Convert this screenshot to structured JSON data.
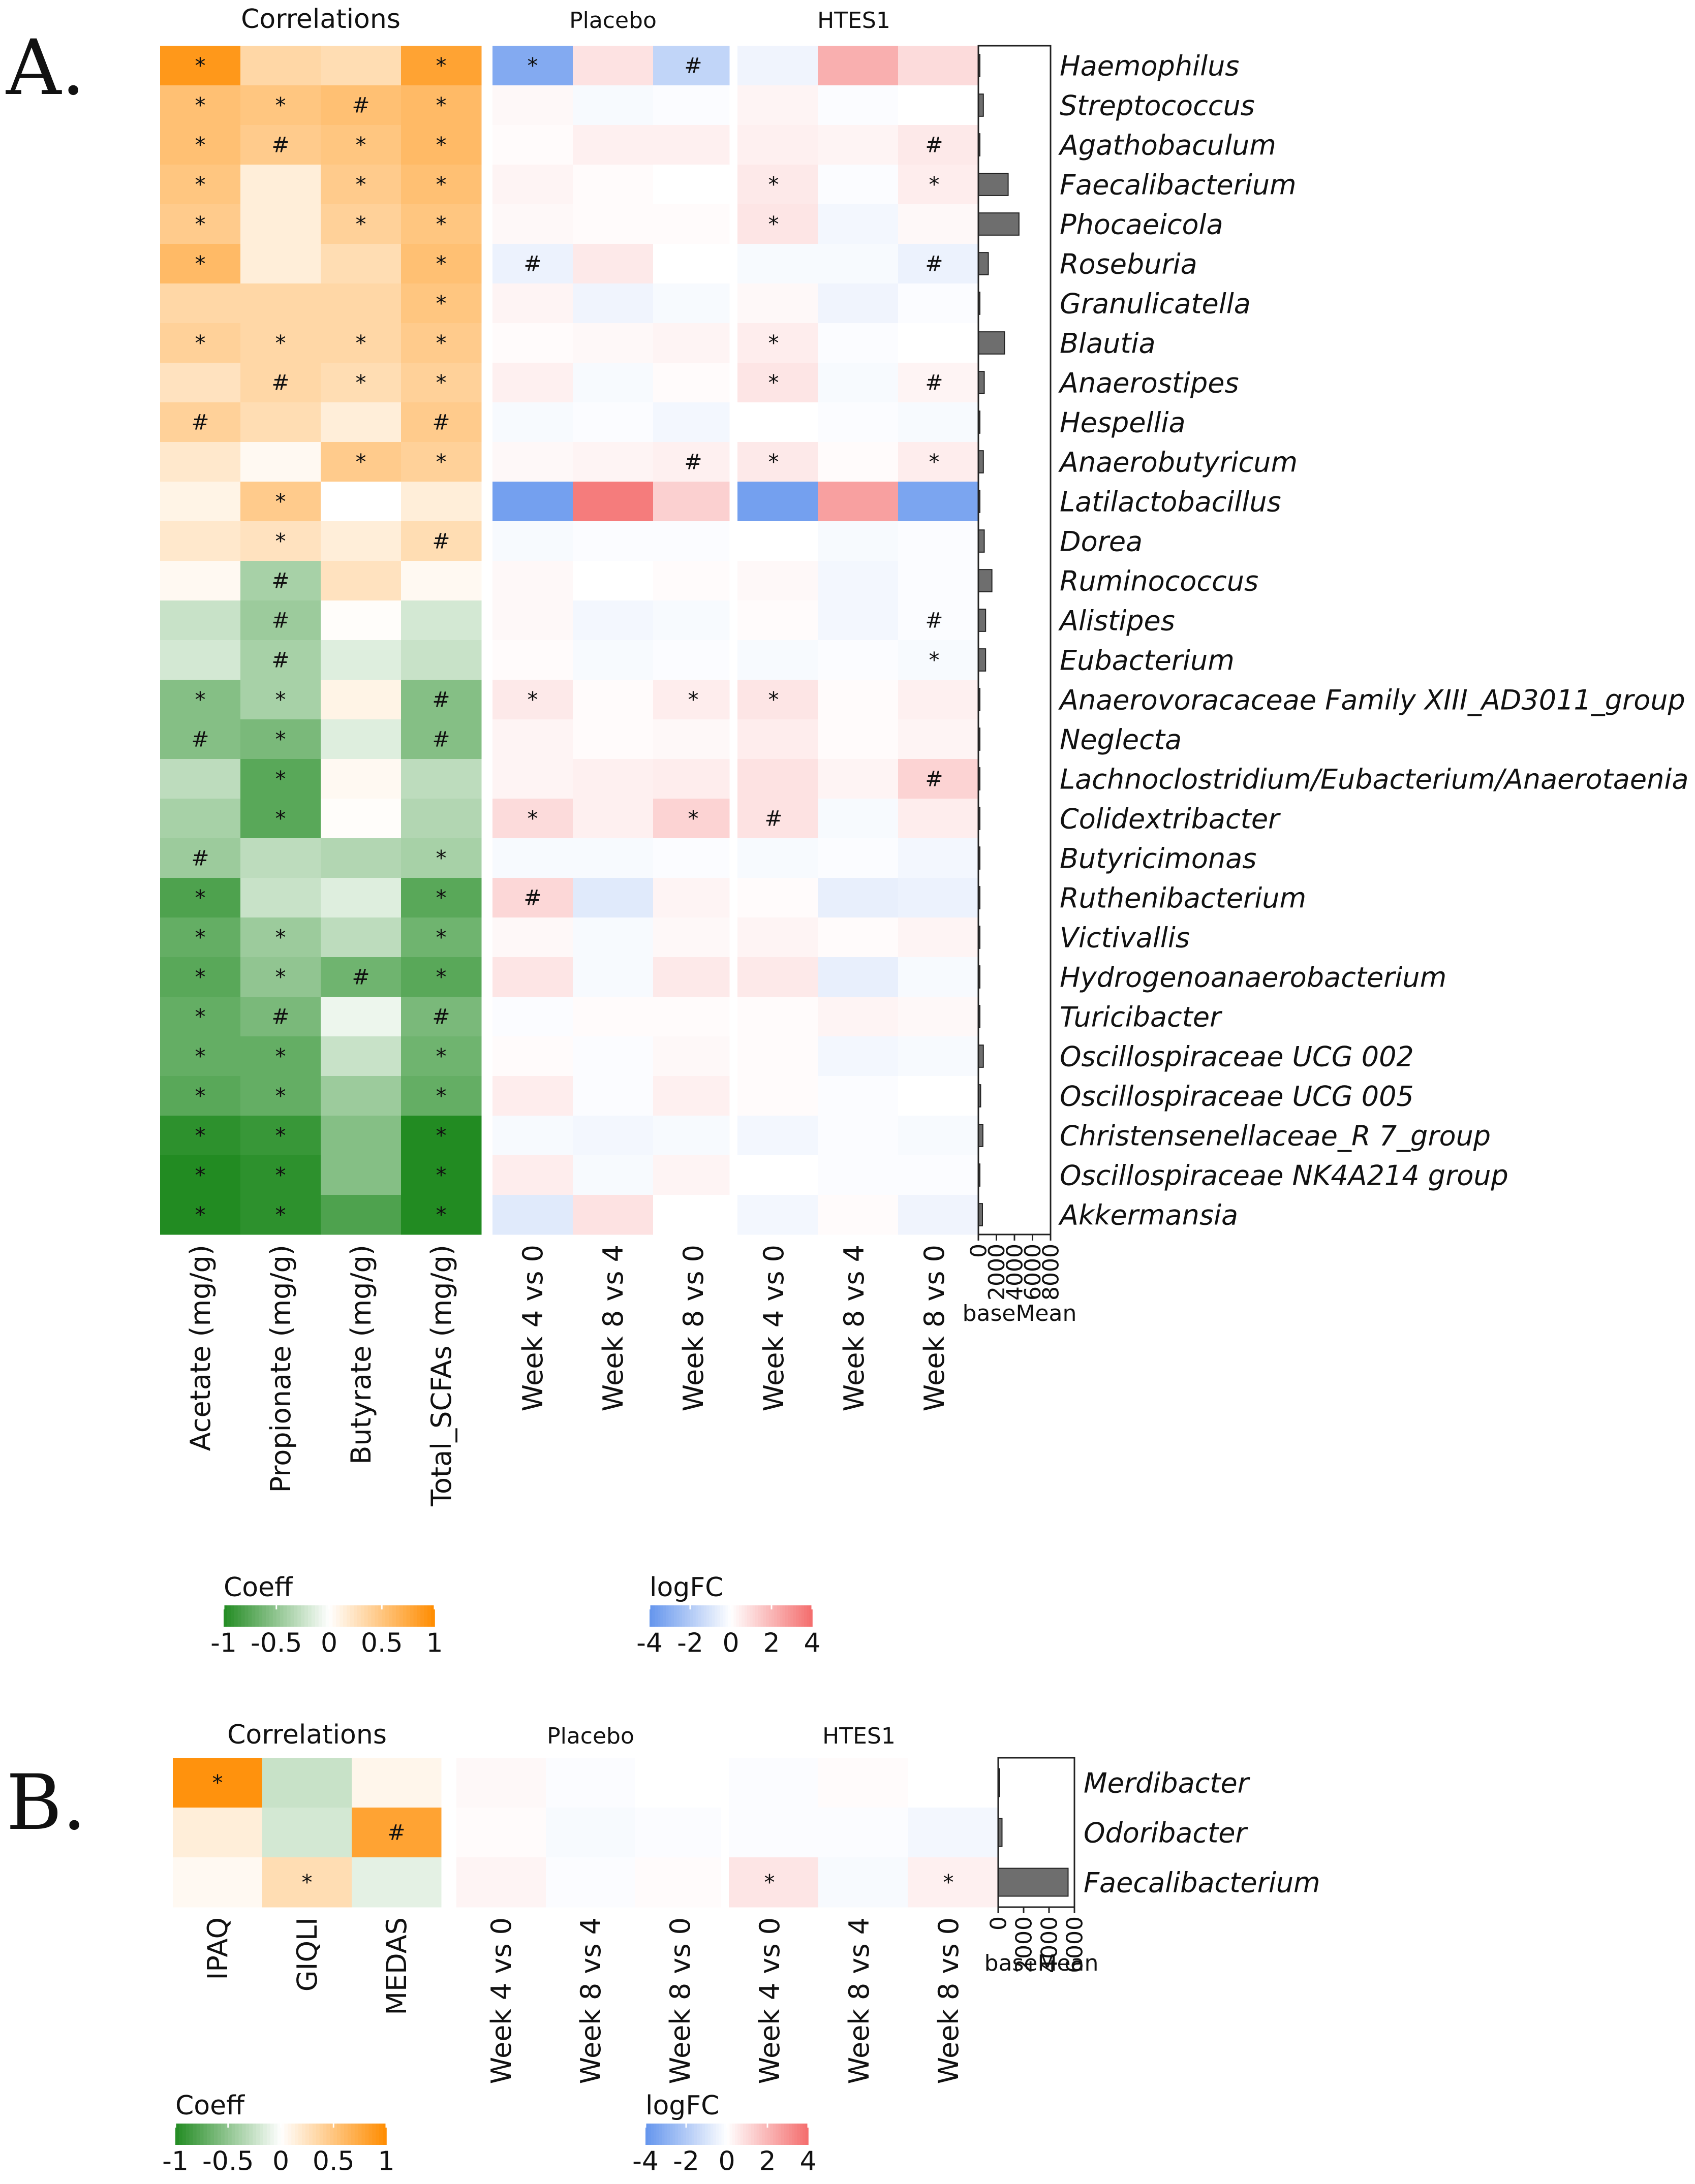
{
  "chart_data": [
    {
      "type": "heatmap",
      "panel_label": "A.",
      "corr_title": "Correlations",
      "group_placebo": "Placebo",
      "group_htes1": "HTES1",
      "taxa": [
        "Haemophilus",
        "Streptococcus",
        "Agathobaculum",
        "Faecalibacterium",
        "Phocaeicola",
        "Roseburia",
        "Granulicatella",
        "Blautia",
        "Anaerostipes",
        "Hespellia",
        "Anaerobutyricum",
        "Latilactobacillus",
        "Dorea",
        "Ruminococcus",
        "Alistipes",
        "Eubacterium",
        "Anaerovoracaceae Family XIII_AD3011_group",
        "Neglecta",
        "Lachnoclostridium/Eubacterium/Anaerotaenia",
        "Colidextribacter",
        "Butyricimonas",
        "Ruthenibacterium",
        "Victivallis",
        "Hydrogenoanaerobacterium",
        "Turicibacter",
        "Oscillospiraceae UCG 002",
        "Oscillospiraceae UCG 005",
        "Christensenellaceae_R 7_group",
        "Oscillospiraceae NK4A214 group",
        "Akkermansia"
      ],
      "corr_columns": [
        "Acetate (mg/g)",
        "Propionate (mg/g)",
        "Butyrate (mg/g)",
        "Total_SCFAs (mg/g)"
      ],
      "lfc_columns": [
        "Week 4 vs 0",
        "Week 8 vs 4",
        "Week 8 vs 0",
        "Week 4 vs 0",
        "Week 8 vs 4",
        "Week 8 vs 0"
      ],
      "corr": [
        [
          0.9,
          0.35,
          0.3,
          0.8
        ],
        [
          0.55,
          0.5,
          0.55,
          0.6
        ],
        [
          0.55,
          0.45,
          0.5,
          0.6
        ],
        [
          0.5,
          0.15,
          0.45,
          0.55
        ],
        [
          0.45,
          0.15,
          0.4,
          0.5
        ],
        [
          0.6,
          0.15,
          0.3,
          0.55
        ],
        [
          0.35,
          0.35,
          0.35,
          0.5
        ],
        [
          0.4,
          0.35,
          0.35,
          0.45
        ],
        [
          0.25,
          0.35,
          0.3,
          0.4
        ],
        [
          0.4,
          0.3,
          0.15,
          0.45
        ],
        [
          0.2,
          0.05,
          0.45,
          0.4
        ],
        [
          0.1,
          0.45,
          0.0,
          0.15
        ],
        [
          0.2,
          0.25,
          0.15,
          0.3
        ],
        [
          0.05,
          -0.4,
          0.25,
          0.05
        ],
        [
          -0.25,
          -0.45,
          0.02,
          -0.2
        ],
        [
          -0.2,
          -0.4,
          -0.15,
          -0.25
        ],
        [
          -0.55,
          -0.4,
          0.1,
          -0.55
        ],
        [
          -0.55,
          -0.6,
          -0.15,
          -0.55
        ],
        [
          -0.3,
          -0.75,
          0.05,
          -0.3
        ],
        [
          -0.4,
          -0.75,
          0.02,
          -0.35
        ],
        [
          -0.45,
          -0.3,
          -0.35,
          -0.4
        ],
        [
          -0.8,
          -0.25,
          -0.15,
          -0.75
        ],
        [
          -0.7,
          -0.45,
          -0.3,
          -0.65
        ],
        [
          -0.75,
          -0.5,
          -0.65,
          -0.75
        ],
        [
          -0.7,
          -0.6,
          -0.08,
          -0.6
        ],
        [
          -0.7,
          -0.7,
          -0.25,
          -0.65
        ],
        [
          -0.75,
          -0.7,
          -0.45,
          -0.7
        ],
        [
          -0.95,
          -0.9,
          -0.55,
          -1.0
        ],
        [
          -1.0,
          -0.95,
          -0.55,
          -1.0
        ],
        [
          -1.0,
          -0.95,
          -0.8,
          -1.0
        ]
      ],
      "corr_sig": [
        [
          "*",
          "",
          "",
          "*"
        ],
        [
          "*",
          "*",
          "#",
          "*"
        ],
        [
          "*",
          "#",
          "*",
          "*"
        ],
        [
          "*",
          "",
          "*",
          "*"
        ],
        [
          "*",
          "",
          "*",
          "*"
        ],
        [
          "*",
          "",
          "",
          "*"
        ],
        [
          "",
          "",
          "",
          "*"
        ],
        [
          "*",
          "*",
          "*",
          "*"
        ],
        [
          "",
          "#",
          "*",
          "*"
        ],
        [
          "#",
          "",
          "",
          "#"
        ],
        [
          "",
          "",
          "*",
          "*"
        ],
        [
          "",
          "*",
          "",
          ""
        ],
        [
          "",
          "*",
          "",
          "#"
        ],
        [
          "",
          "#",
          "",
          ""
        ],
        [
          "",
          "#",
          "",
          ""
        ],
        [
          "",
          "#",
          "",
          ""
        ],
        [
          "*",
          "*",
          "",
          "#"
        ],
        [
          "#",
          "*",
          "",
          "#"
        ],
        [
          "",
          "*",
          "",
          ""
        ],
        [
          "",
          "*",
          "",
          ""
        ],
        [
          "#",
          "",
          "",
          "*"
        ],
        [
          "*",
          "",
          "",
          "*"
        ],
        [
          "*",
          "*",
          "",
          "*"
        ],
        [
          "*",
          "*",
          "#",
          "*"
        ],
        [
          "*",
          "#",
          "",
          "#"
        ],
        [
          "*",
          "*",
          "",
          "*"
        ],
        [
          "*",
          "*",
          "",
          "*"
        ],
        [
          "*",
          "*",
          "",
          "*"
        ],
        [
          "*",
          "*",
          "",
          "*"
        ],
        [
          "*",
          "*",
          "",
          "*"
        ]
      ],
      "lfc": [
        [
          -3.2,
          0.8,
          -1.6,
          -0.4,
          2.2,
          1.0
        ],
        [
          0.2,
          -0.2,
          -0.1,
          0.3,
          -0.1,
          0.0
        ],
        [
          0.1,
          0.4,
          0.4,
          0.4,
          0.3,
          0.6
        ],
        [
          0.3,
          0.1,
          0.0,
          0.6,
          -0.1,
          0.5
        ],
        [
          0.2,
          0.1,
          0.1,
          0.7,
          -0.3,
          0.2
        ],
        [
          -0.5,
          0.6,
          0.0,
          -0.2,
          -0.2,
          -0.5
        ],
        [
          0.3,
          -0.4,
          -0.2,
          0.2,
          -0.4,
          -0.1
        ],
        [
          0.1,
          0.2,
          0.3,
          0.5,
          -0.1,
          0.0
        ],
        [
          0.4,
          -0.2,
          0.1,
          0.7,
          -0.2,
          0.3
        ],
        [
          -0.2,
          -0.1,
          -0.3,
          0.0,
          -0.1,
          -0.2
        ],
        [
          0.2,
          0.3,
          0.4,
          0.6,
          0.1,
          0.5
        ],
        [
          -3.6,
          3.6,
          1.3,
          -3.6,
          2.6,
          -3.4
        ],
        [
          -0.2,
          -0.1,
          -0.1,
          0.0,
          -0.2,
          -0.1
        ],
        [
          0.2,
          0.0,
          0.1,
          0.2,
          -0.3,
          -0.1
        ],
        [
          0.2,
          -0.3,
          -0.2,
          0.1,
          -0.3,
          -0.1
        ],
        [
          0.1,
          -0.2,
          -0.1,
          -0.2,
          -0.1,
          -0.2
        ],
        [
          0.6,
          0.1,
          0.5,
          0.7,
          0.1,
          0.4
        ],
        [
          0.3,
          0.1,
          0.2,
          0.5,
          0.1,
          0.3
        ],
        [
          0.3,
          0.4,
          0.5,
          0.8,
          0.3,
          1.2
        ],
        [
          1.0,
          0.4,
          1.2,
          0.8,
          -0.2,
          0.5
        ],
        [
          -0.2,
          -0.2,
          -0.1,
          -0.2,
          -0.1,
          -0.3
        ],
        [
          1.1,
          -0.8,
          0.3,
          0.1,
          -0.6,
          -0.5
        ],
        [
          0.2,
          -0.2,
          0.2,
          0.3,
          0.1,
          0.3
        ],
        [
          0.7,
          -0.2,
          0.6,
          0.6,
          -0.6,
          -0.2
        ],
        [
          -0.1,
          0.1,
          0.1,
          0.1,
          0.3,
          0.2
        ],
        [
          0.1,
          -0.1,
          0.2,
          0.1,
          -0.3,
          -0.2
        ],
        [
          0.5,
          -0.1,
          0.4,
          0.1,
          -0.1,
          0.0
        ],
        [
          -0.2,
          -0.3,
          -0.2,
          -0.3,
          -0.1,
          -0.2
        ],
        [
          0.5,
          -0.2,
          0.3,
          0.0,
          -0.1,
          -0.1
        ],
        [
          -0.8,
          0.8,
          0.0,
          -0.3,
          0.1,
          -0.4
        ]
      ],
      "lfc_sig": [
        [
          "*",
          "",
          "#",
          "",
          "",
          ""
        ],
        [
          "",
          "",
          "",
          "",
          "",
          ""
        ],
        [
          "",
          "",
          "",
          "",
          "",
          "#"
        ],
        [
          "",
          "",
          "",
          "*",
          "",
          "*"
        ],
        [
          "",
          "",
          "",
          "*",
          "",
          ""
        ],
        [
          "#",
          "",
          "",
          "",
          "",
          "#"
        ],
        [
          "",
          "",
          "",
          "",
          "",
          ""
        ],
        [
          "",
          "",
          "",
          "*",
          "",
          ""
        ],
        [
          "",
          "",
          "",
          "*",
          "",
          "#"
        ],
        [
          "",
          "",
          "",
          "",
          "",
          ""
        ],
        [
          "",
          "",
          "#",
          "*",
          "",
          "*"
        ],
        [
          "",
          "",
          "",
          "",
          "",
          ""
        ],
        [
          "",
          "",
          "",
          "",
          "",
          ""
        ],
        [
          "",
          "",
          "",
          "",
          "",
          ""
        ],
        [
          "",
          "",
          "",
          "",
          "",
          "#"
        ],
        [
          "",
          "",
          "",
          "",
          "",
          "*"
        ],
        [
          "*",
          "",
          "*",
          "*",
          "",
          ""
        ],
        [
          "",
          "",
          "",
          "",
          "",
          ""
        ],
        [
          "",
          "",
          "",
          "",
          "",
          "#"
        ],
        [
          "*",
          "",
          "*",
          "#",
          "",
          ""
        ],
        [
          "",
          "",
          "",
          "",
          "",
          ""
        ],
        [
          "#",
          "",
          "",
          "",
          "",
          ""
        ],
        [
          "",
          "",
          "",
          "",
          "",
          ""
        ],
        [
          "",
          "",
          "",
          "",
          "",
          ""
        ],
        [
          "",
          "",
          "",
          "",
          "",
          ""
        ],
        [
          "",
          "",
          "",
          "",
          "",
          ""
        ],
        [
          "",
          "",
          "",
          "",
          "",
          ""
        ],
        [
          "",
          "",
          "",
          "",
          "",
          ""
        ],
        [
          "",
          "",
          "",
          "",
          "",
          ""
        ],
        [
          "",
          "",
          "",
          "",
          "",
          ""
        ]
      ],
      "baseMean": [
        20,
        550,
        100,
        3300,
        4500,
        1100,
        50,
        2900,
        650,
        50,
        550,
        50,
        650,
        1500,
        800,
        800,
        40,
        40,
        40,
        40,
        40,
        50,
        40,
        40,
        60,
        550,
        250,
        500,
        150,
        450
      ],
      "baseMean_ticks": [
        "0",
        "2000",
        "4000",
        "6000",
        "8000"
      ],
      "baseMean_max": 8000,
      "baseMean_label": "baseMean"
    },
    {
      "type": "heatmap",
      "panel_label": "B.",
      "corr_title": "Correlations",
      "group_placebo": "Placebo",
      "group_htes1": "HTES1",
      "taxa": [
        "Merdibacter",
        "Odoribacter",
        "Faecalibacterium"
      ],
      "corr_columns": [
        "IPAQ",
        "GIQLI",
        "MEDAS"
      ],
      "lfc_columns": [
        "Week 4 vs 0",
        "Week 8 vs 4",
        "Week 8 vs 0",
        "Week 4 vs 0",
        "Week 8 vs 4",
        "Week 8 vs 0"
      ],
      "corr": [
        [
          0.95,
          -0.25,
          0.08
        ],
        [
          0.15,
          -0.2,
          0.8
        ],
        [
          0.05,
          0.3,
          -0.12
        ]
      ],
      "corr_sig": [
        [
          "*",
          "",
          ""
        ],
        [
          "",
          "",
          "#"
        ],
        [
          "",
          "*",
          ""
        ]
      ],
      "lfc": [
        [
          0.2,
          -0.1,
          0.0,
          -0.1,
          0.1,
          0.0
        ],
        [
          0.1,
          -0.2,
          -0.1,
          -0.1,
          -0.1,
          -0.3
        ],
        [
          0.3,
          -0.1,
          0.1,
          0.7,
          -0.2,
          0.4
        ]
      ],
      "lfc_sig": [
        [
          "",
          "",
          "",
          "",
          "",
          ""
        ],
        [
          "",
          "",
          "",
          "",
          "",
          ""
        ],
        [
          "",
          "",
          "",
          "*",
          "",
          "*"
        ]
      ],
      "baseMean": [
        20,
        300,
        5500
      ],
      "baseMean_ticks": [
        "0",
        "2000",
        "4000",
        "6000"
      ],
      "baseMean_max": 6000,
      "baseMean_label": "baseMean"
    }
  ],
  "legends": {
    "coeff_title": "Coeff",
    "coeff_ticks": [
      "-1",
      "-0.5",
      "0",
      "0.5",
      "1"
    ],
    "logfc_title": "logFC",
    "logfc_ticks": [
      "-4",
      "-2",
      "0",
      "2",
      "4"
    ]
  },
  "colors": {
    "coeff_neg": "#228b22",
    "coeff_pos": "#ff8c00",
    "logfc_neg": "#6495ed",
    "logfc_pos": "#f46d6d",
    "bar_fill": "#6e6e6e"
  }
}
